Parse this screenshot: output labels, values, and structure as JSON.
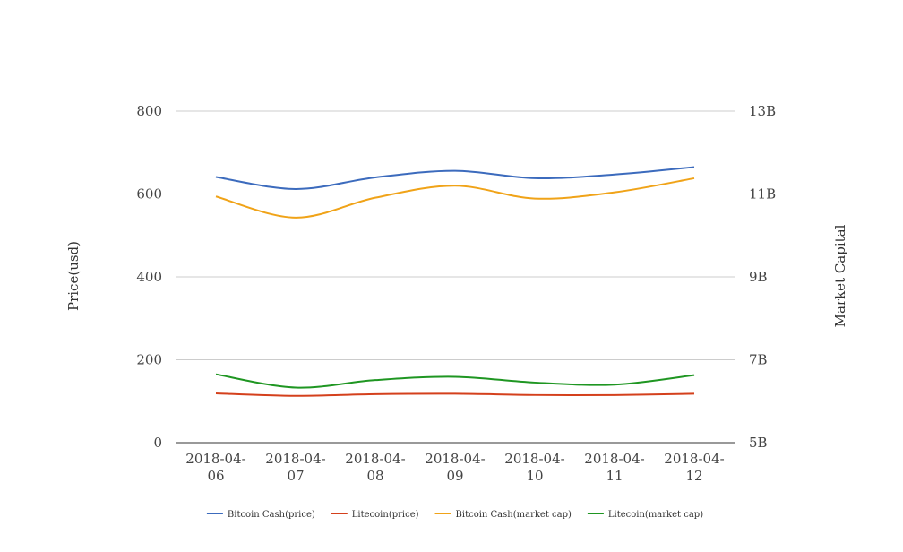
{
  "chart_data": {
    "type": "line",
    "title": "",
    "x": [
      "2018-04-06",
      "2018-04-07",
      "2018-04-08",
      "2018-04-09",
      "2018-04-10",
      "2018-04-11",
      "2018-04-12"
    ],
    "x_tick_labels": [
      [
        "2018-04-",
        "06"
      ],
      [
        "2018-04-",
        "07"
      ],
      [
        "2018-04-",
        "08"
      ],
      [
        "2018-04-",
        "09"
      ],
      [
        "2018-04-",
        "10"
      ],
      [
        "2018-04-",
        "11"
      ],
      [
        "2018-04-",
        "12"
      ]
    ],
    "ylabel": "Price(usd)",
    "ylabel_right": "Market Capital",
    "ylim": [
      0,
      800
    ],
    "ylim_right": [
      5000000000,
      13000000000
    ],
    "yticks": [
      0,
      200,
      400,
      600,
      800
    ],
    "yticks_right": [
      5000000000,
      7000000000,
      9000000000,
      11000000000,
      13000000000
    ],
    "yticks_right_labels": [
      "5B",
      "7B",
      "9B",
      "11B",
      "13B"
    ],
    "grid": true,
    "legend_position": "bottom",
    "series": [
      {
        "name": "Bitcoin Cash(price)",
        "axis": "left",
        "color": "#3c6bbd",
        "values": [
          641,
          612,
          640,
          656,
          638,
          647,
          665
        ]
      },
      {
        "name": "Litecoin(price)",
        "axis": "left",
        "color": "#d4401c",
        "values": [
          119,
          113,
          117,
          118,
          115,
          115,
          118
        ]
      },
      {
        "name": "Bitcoin Cash(market cap)",
        "axis": "right",
        "color": "#f0a318",
        "values": [
          10940000000,
          10430000000,
          10910000000,
          11200000000,
          10890000000,
          11040000000,
          11380000000
        ]
      },
      {
        "name": "Litecoin(market cap)",
        "axis": "right",
        "color": "#1f9622",
        "values": [
          6650000000,
          6330000000,
          6510000000,
          6590000000,
          6450000000,
          6400000000,
          6630000000
        ]
      }
    ]
  }
}
